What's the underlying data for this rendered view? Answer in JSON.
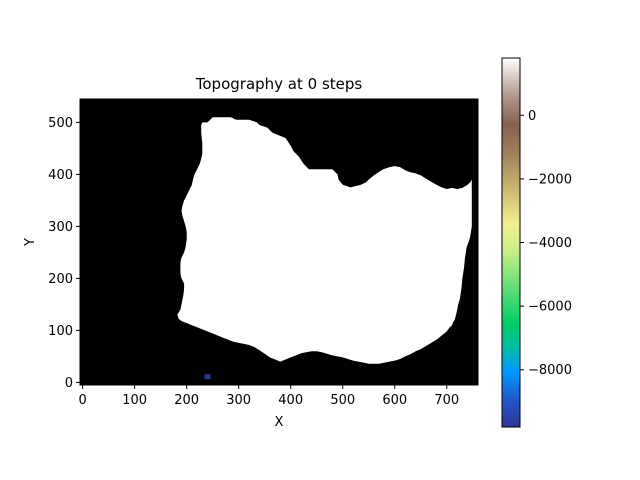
{
  "chart_data": {
    "type": "heatmap",
    "title": "Topography at 0 steps",
    "xlabel": "X",
    "ylabel": "Y",
    "xlim": [
      -5,
      760
    ],
    "ylim": [
      -5,
      545
    ],
    "x_ticks": [
      0,
      100,
      200,
      300,
      400,
      500,
      600,
      700
    ],
    "y_ticks": [
      0,
      100,
      200,
      300,
      400,
      500
    ],
    "colorbar": {
      "ticks": [
        0,
        -2000,
        -4000,
        -6000,
        -8000
      ],
      "tick_labels": [
        "0",
        "−2000",
        "−4000",
        "−6000",
        "−8000"
      ],
      "range": [
        -9800,
        1800
      ],
      "colormap": "terrain"
    },
    "background_value_color": "#000000",
    "land_color": "#ffffff",
    "land_outline": [
      [
        230,
        500
      ],
      [
        240,
        500
      ],
      [
        250,
        510
      ],
      [
        285,
        510
      ],
      [
        295,
        505
      ],
      [
        320,
        505
      ],
      [
        335,
        500
      ],
      [
        340,
        495
      ],
      [
        355,
        490
      ],
      [
        365,
        480
      ],
      [
        390,
        470
      ],
      [
        400,
        455
      ],
      [
        405,
        445
      ],
      [
        415,
        435
      ],
      [
        425,
        420
      ],
      [
        435,
        410
      ],
      [
        480,
        410
      ],
      [
        490,
        400
      ],
      [
        492,
        390
      ],
      [
        500,
        380
      ],
      [
        515,
        375
      ],
      [
        535,
        380
      ],
      [
        545,
        385
      ],
      [
        550,
        390
      ],
      [
        560,
        398
      ],
      [
        570,
        405
      ],
      [
        578,
        410
      ],
      [
        590,
        414
      ],
      [
        600,
        416
      ],
      [
        610,
        414
      ],
      [
        620,
        408
      ],
      [
        630,
        404
      ],
      [
        640,
        402
      ],
      [
        650,
        398
      ],
      [
        660,
        392
      ],
      [
        670,
        386
      ],
      [
        680,
        380
      ],
      [
        690,
        375
      ],
      [
        700,
        372
      ],
      [
        710,
        374
      ],
      [
        720,
        372
      ],
      [
        730,
        374
      ],
      [
        740,
        380
      ],
      [
        745,
        385
      ],
      [
        748,
        390
      ],
      [
        748,
        300
      ],
      [
        745,
        280
      ],
      [
        742,
        270
      ],
      [
        738,
        260
      ],
      [
        735,
        240
      ],
      [
        733,
        220
      ],
      [
        730,
        200
      ],
      [
        728,
        180
      ],
      [
        725,
        160
      ],
      [
        722,
        150
      ],
      [
        720,
        140
      ],
      [
        718,
        130
      ],
      [
        715,
        120
      ],
      [
        712,
        115
      ],
      [
        710,
        110
      ],
      [
        705,
        105
      ],
      [
        700,
        98
      ],
      [
        690,
        90
      ],
      [
        680,
        82
      ],
      [
        670,
        76
      ],
      [
        660,
        70
      ],
      [
        650,
        64
      ],
      [
        640,
        60
      ],
      [
        630,
        54
      ],
      [
        620,
        50
      ],
      [
        610,
        45
      ],
      [
        600,
        42
      ],
      [
        590,
        40
      ],
      [
        580,
        38
      ],
      [
        570,
        36
      ],
      [
        560,
        36
      ],
      [
        550,
        36
      ],
      [
        540,
        38
      ],
      [
        530,
        40
      ],
      [
        520,
        42
      ],
      [
        510,
        45
      ],
      [
        500,
        48
      ],
      [
        490,
        50
      ],
      [
        480,
        52
      ],
      [
        470,
        55
      ],
      [
        460,
        58
      ],
      [
        450,
        60
      ],
      [
        440,
        60
      ],
      [
        430,
        58
      ],
      [
        420,
        56
      ],
      [
        410,
        52
      ],
      [
        400,
        48
      ],
      [
        390,
        44
      ],
      [
        380,
        40
      ],
      [
        370,
        44
      ],
      [
        360,
        48
      ],
      [
        350,
        55
      ],
      [
        340,
        62
      ],
      [
        330,
        68
      ],
      [
        320,
        72
      ],
      [
        310,
        74
      ],
      [
        300,
        76
      ],
      [
        290,
        78
      ],
      [
        280,
        82
      ],
      [
        270,
        86
      ],
      [
        260,
        90
      ],
      [
        250,
        94
      ],
      [
        240,
        98
      ],
      [
        230,
        102
      ],
      [
        220,
        106
      ],
      [
        210,
        110
      ],
      [
        200,
        114
      ],
      [
        190,
        118
      ],
      [
        185,
        122
      ],
      [
        182,
        130
      ],
      [
        185,
        135
      ],
      [
        188,
        140
      ],
      [
        190,
        150
      ],
      [
        192,
        160
      ],
      [
        194,
        170
      ],
      [
        195,
        180
      ],
      [
        195,
        190
      ],
      [
        190,
        200
      ],
      [
        188,
        210
      ],
      [
        188,
        220
      ],
      [
        188,
        230
      ],
      [
        190,
        240
      ],
      [
        195,
        250
      ],
      [
        198,
        260
      ],
      [
        200,
        275
      ],
      [
        200,
        290
      ],
      [
        198,
        300
      ],
      [
        195,
        310
      ],
      [
        192,
        320
      ],
      [
        190,
        330
      ],
      [
        192,
        340
      ],
      [
        195,
        350
      ],
      [
        200,
        360
      ],
      [
        205,
        370
      ],
      [
        210,
        380
      ],
      [
        212,
        390
      ],
      [
        215,
        400
      ],
      [
        220,
        410
      ],
      [
        225,
        420
      ],
      [
        228,
        430
      ],
      [
        230,
        440
      ],
      [
        230,
        460
      ],
      [
        228,
        480
      ],
      [
        228,
        495
      ],
      [
        230,
        500
      ]
    ],
    "small_feature": {
      "x": 240,
      "y": 10,
      "color": "#2a3a9a"
    }
  }
}
